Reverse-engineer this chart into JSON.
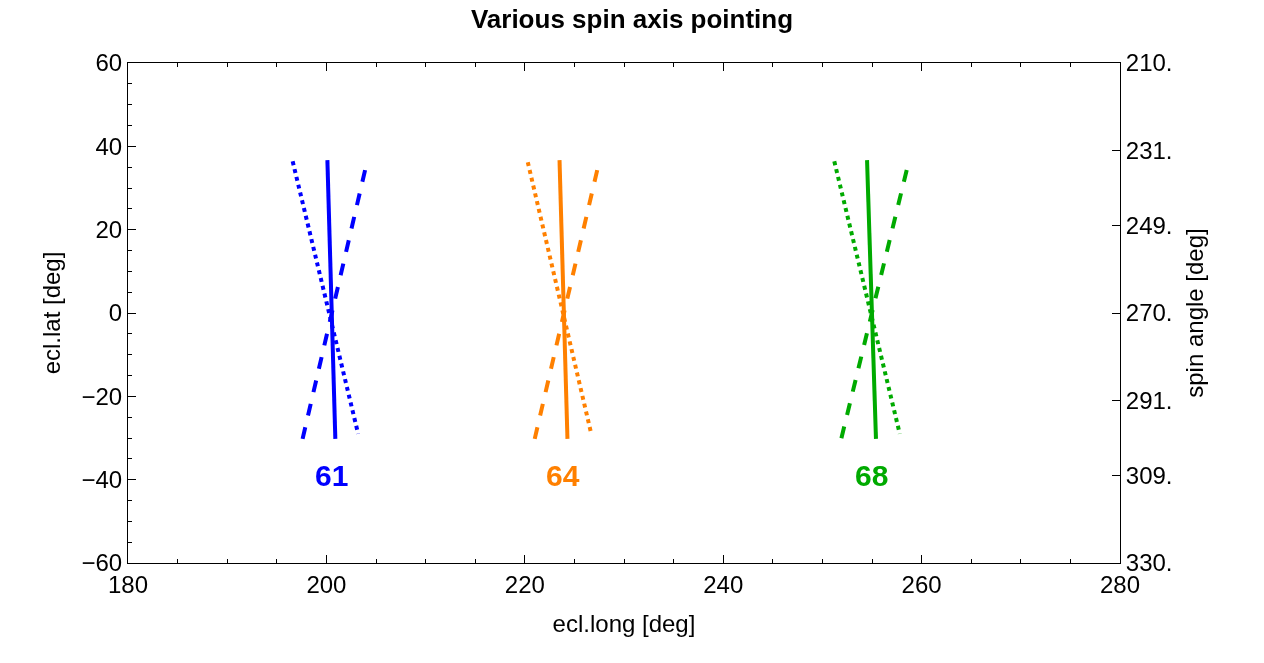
{
  "chart_data": {
    "type": "line",
    "title": "Various spin axis pointing",
    "xlabel": "ecl.long [deg]",
    "ylabel": "ecl.lat [deg]",
    "y2label": "spin angle [deg]",
    "xlim": [
      180,
      280
    ],
    "xticks": [
      180,
      200,
      220,
      240,
      260,
      280
    ],
    "ylim": [
      -60,
      60
    ],
    "yticks": [
      -60,
      -40,
      -20,
      0,
      20,
      40,
      60
    ],
    "y2lim": [
      330,
      210
    ],
    "y2ticks": [
      {
        "value": 210,
        "label": "210."
      },
      {
        "value": 231,
        "label": "231."
      },
      {
        "value": 249,
        "label": "249."
      },
      {
        "value": 270,
        "label": "270."
      },
      {
        "value": 291,
        "label": "291."
      },
      {
        "value": 309,
        "label": "309."
      },
      {
        "value": 330,
        "label": "330."
      }
    ],
    "grid": false,
    "legend": false,
    "marker": "none",
    "series": [
      {
        "name": "61",
        "color": "#0000ff",
        "line_style": "solid",
        "x": [
          200.1,
          200.9
        ],
        "values": [
          36.7,
          -30.2
        ]
      },
      {
        "color": "#0000ff",
        "line_style": "dotted",
        "x": [
          196.6,
          203.2
        ],
        "values": [
          36.4,
          -29.0
        ]
      },
      {
        "color": "#0000ff",
        "line_style": "dashed",
        "x": [
          203.9,
          197.6
        ],
        "values": [
          34.3,
          -30.2
        ]
      },
      {
        "name": "64",
        "color": "#ff8000",
        "line_style": "solid",
        "x": [
          223.5,
          224.3
        ],
        "values": [
          36.7,
          -30.2
        ]
      },
      {
        "color": "#ff8000",
        "line_style": "dotted",
        "x": [
          220.3,
          226.7
        ],
        "values": [
          36.2,
          -29.0
        ]
      },
      {
        "color": "#ff8000",
        "line_style": "dashed",
        "x": [
          227.3,
          221.0
        ],
        "values": [
          34.3,
          -30.2
        ]
      },
      {
        "name": "68",
        "color": "#00aa00",
        "line_style": "solid",
        "x": [
          254.5,
          255.4
        ],
        "values": [
          36.7,
          -30.2
        ]
      },
      {
        "color": "#00aa00",
        "line_style": "dotted",
        "x": [
          251.2,
          257.8
        ],
        "values": [
          36.4,
          -29.0
        ]
      },
      {
        "color": "#00aa00",
        "line_style": "dashed",
        "x": [
          258.5,
          251.9
        ],
        "values": [
          34.3,
          -30.2
        ]
      }
    ]
  }
}
